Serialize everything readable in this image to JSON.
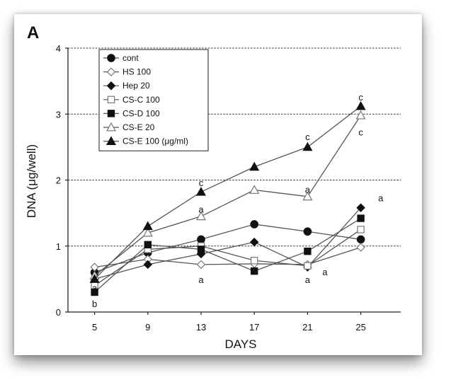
{
  "chart_data": {
    "type": "line",
    "panel_label": "A",
    "xlabel": "DAYS",
    "ylabel": "DNA (μg/well)",
    "x": [
      5,
      9,
      13,
      17,
      21,
      25
    ],
    "x_ticks": [
      "5",
      "9",
      "13",
      "17",
      "21",
      "25"
    ],
    "y_ticks": [
      "0",
      "1",
      "2",
      "3",
      "4"
    ],
    "ylim": [
      0,
      4
    ],
    "grid": "dashed horizontal at 1, 2, 3, 4",
    "legend_position": "top-left",
    "series": [
      {
        "name": "cont",
        "marker": "circle-filled",
        "values": [
          0.6,
          0.9,
          1.1,
          1.33,
          1.22,
          1.1
        ]
      },
      {
        "name": "HS 100",
        "marker": "diamond-open",
        "values": [
          0.68,
          0.8,
          0.72,
          0.73,
          0.72,
          0.98
        ]
      },
      {
        "name": "Hep 20",
        "marker": "diamond-filled",
        "values": [
          0.5,
          0.72,
          0.88,
          1.06,
          0.68,
          1.58
        ]
      },
      {
        "name": "CS-C 100",
        "marker": "square-open",
        "values": [
          0.4,
          0.95,
          1.0,
          0.78,
          0.7,
          1.25
        ]
      },
      {
        "name": "CS-D 100",
        "marker": "square-filled",
        "values": [
          0.3,
          1.02,
          0.95,
          0.62,
          0.92,
          1.42
        ]
      },
      {
        "name": "CS-E 20",
        "marker": "triangle-open",
        "values": [
          0.55,
          1.2,
          1.45,
          1.85,
          1.75,
          2.98
        ]
      },
      {
        "name": "CS-E 100 (μg/ml)",
        "marker": "triangle-filled",
        "values": [
          0.5,
          1.3,
          1.82,
          2.2,
          2.5,
          3.12
        ]
      }
    ],
    "annotations": [
      {
        "text": "a",
        "x": 5,
        "y": 0.36
      },
      {
        "text": "b",
        "x": 5,
        "y": 0.12
      },
      {
        "text": "c",
        "x": 13,
        "y": 1.95
      },
      {
        "text": "a",
        "x": 13,
        "y": 1.55
      },
      {
        "text": "a",
        "x": 13,
        "y": 0.48
      },
      {
        "text": "c",
        "x": 21,
        "y": 2.65
      },
      {
        "text": "a",
        "x": 21,
        "y": 1.85
      },
      {
        "text": "a",
        "x": 21,
        "y": 0.48
      },
      {
        "text": "a",
        "x": 22.3,
        "y": 0.6
      },
      {
        "text": "c",
        "x": 25,
        "y": 3.25
      },
      {
        "text": "c",
        "x": 25,
        "y": 2.72
      },
      {
        "text": "a",
        "x": 26.5,
        "y": 1.72
      }
    ]
  }
}
